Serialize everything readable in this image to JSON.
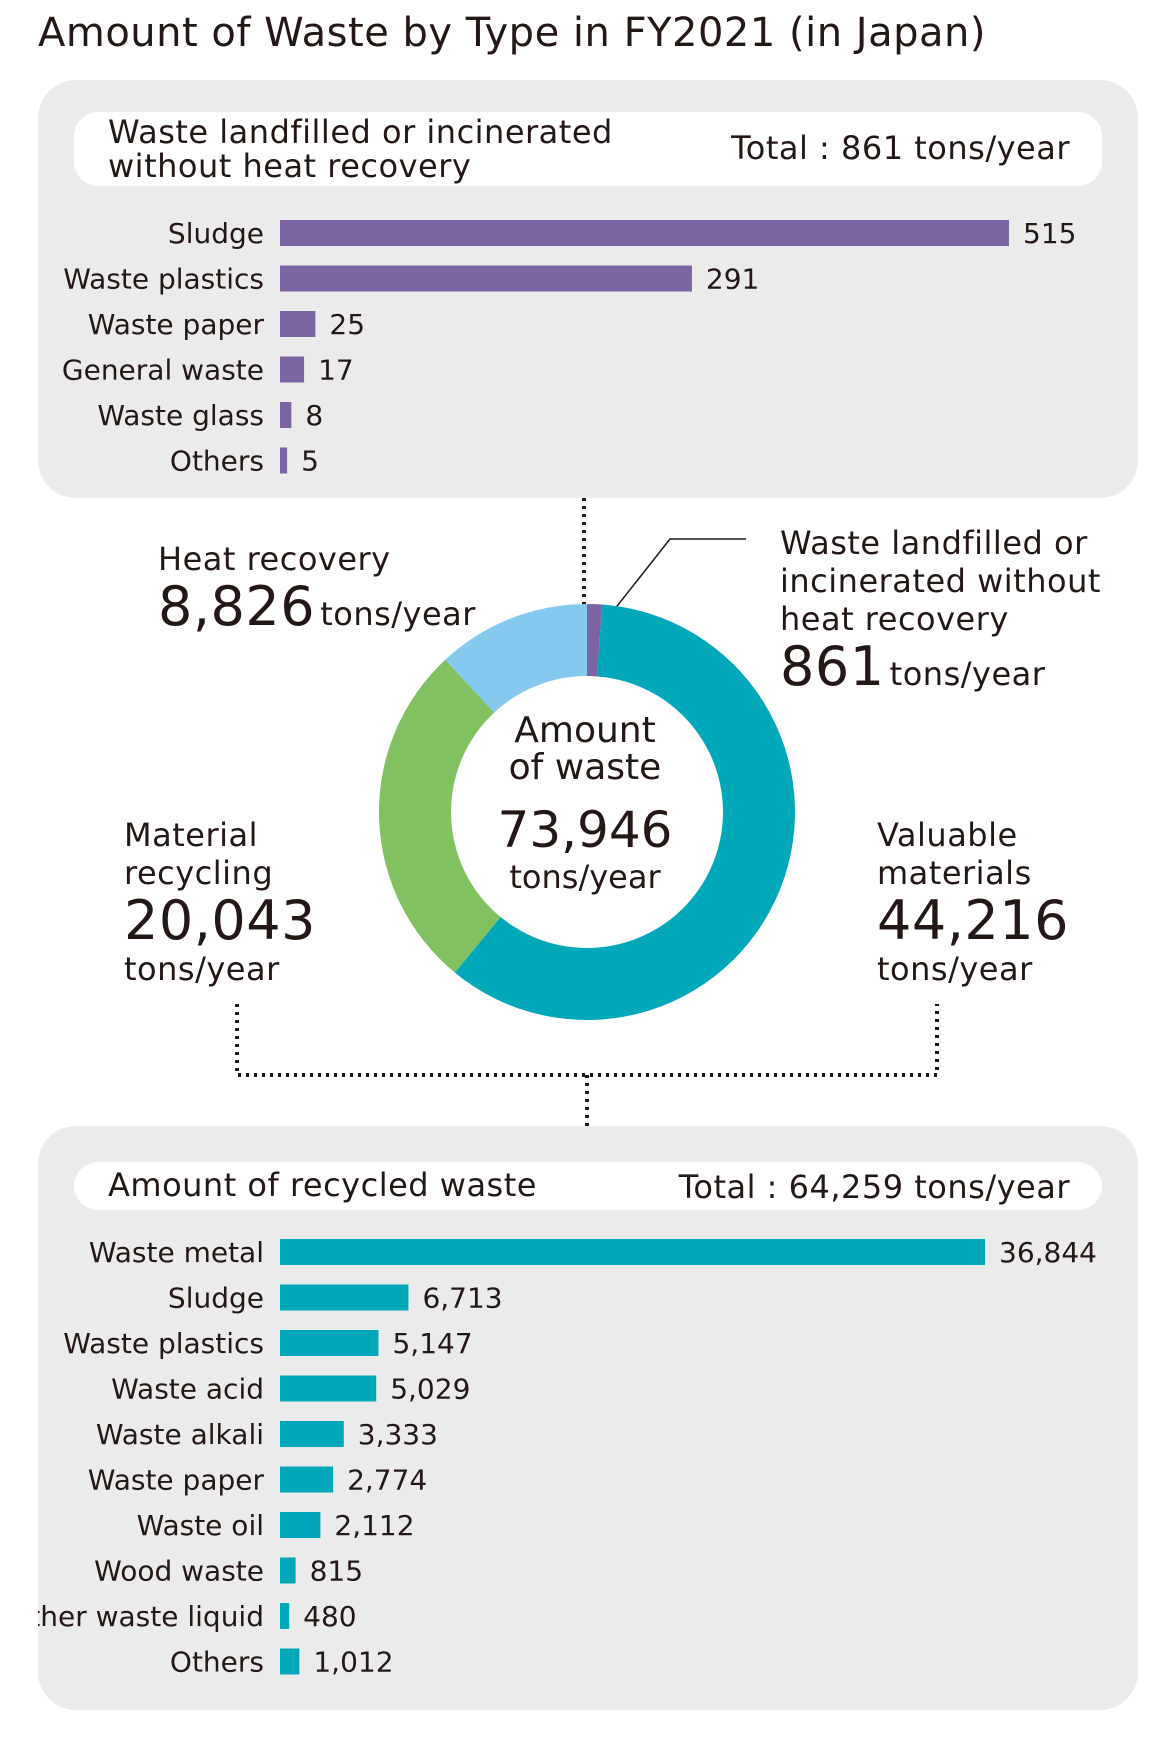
{
  "title": "Amount of Waste by Type in FY2021 (in Japan)",
  "colors": {
    "purple": "#7b64a1",
    "teal": "#00a8b9",
    "green": "#82c160",
    "light_blue": "#85c9ee",
    "panel_bg": "#ebebeb"
  },
  "top_panel": {
    "header": "Waste landfilled or incinerated without heat recovery",
    "total": "Total : 861 tons/year"
  },
  "bottom_panel": {
    "header": "Amount of recycled waste",
    "total": "Total : 64,259 tons/year"
  },
  "donut": {
    "center_line1": "Amount",
    "center_line2": "of waste",
    "center_value": "73,946",
    "center_unit": "tons/year",
    "heat_recovery": {
      "label": "Heat recovery",
      "value": "8,826",
      "unit": "tons/year"
    },
    "landfilled": {
      "label_line1": "Waste landfilled or",
      "label_line2": "incinerated without",
      "label_line3": "heat recovery",
      "value": "861",
      "unit": "tons/year"
    },
    "material": {
      "label_line1": "Material",
      "label_line2": "recycling",
      "value": "20,043",
      "unit": "tons/year"
    },
    "valuable": {
      "label_line1": "Valuable",
      "label_line2": "materials",
      "value": "44,216",
      "unit": "tons/year"
    }
  },
  "chart_data": [
    {
      "type": "bar",
      "orientation": "horizontal",
      "categories": [
        "Sludge",
        "Waste plastics",
        "Waste paper",
        "General waste",
        "Waste glass",
        "Others"
      ],
      "values": [
        515,
        291,
        25,
        17,
        8,
        5
      ],
      "value_labels": [
        "515",
        "291",
        "25",
        "17",
        "8",
        "5"
      ],
      "color": "#7b64a1"
    },
    {
      "type": "pie",
      "donut": true,
      "categories": [
        "Waste landfilled or incinerated without heat recovery",
        "Valuable materials",
        "Material recycling",
        "Heat recovery"
      ],
      "values": [
        861,
        44216,
        20043,
        8826
      ],
      "colors": [
        "#7b64a1",
        "#00a8b9",
        "#82c160",
        "#85c9ee"
      ],
      "total": 73946
    },
    {
      "type": "bar",
      "orientation": "horizontal",
      "categories": [
        "Waste metal",
        "Sludge",
        "Waste plastics",
        "Waste acid",
        "Waste alkali",
        "Waste paper",
        "Waste oil",
        "Wood waste",
        "Other waste liquid",
        "Others"
      ],
      "values": [
        36844,
        6713,
        5147,
        5029,
        3333,
        2774,
        2112,
        815,
        480,
        1012
      ],
      "value_labels": [
        "36,844",
        "6,713",
        "5,147",
        "5,029",
        "3,333",
        "2,774",
        "2,112",
        "815",
        "480",
        "1,012"
      ],
      "color": "#00a8b9"
    }
  ]
}
